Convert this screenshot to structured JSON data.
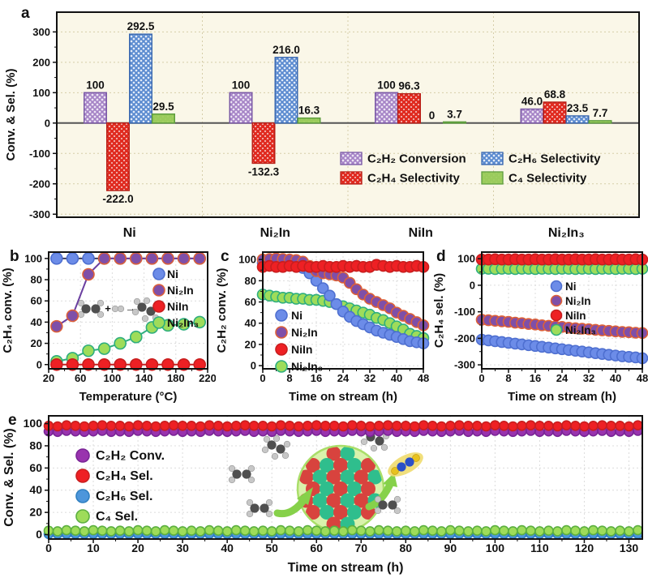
{
  "figure": {
    "panels": {
      "a": "a",
      "b": "b",
      "c": "c",
      "d": "d",
      "e": "e"
    },
    "inset_b": {
      "plus": "+",
      "arrow": "→"
    }
  },
  "chart_data": [
    {
      "panel": "a",
      "type": "bar",
      "ylabel": "Conv. & Sel. (%)",
      "categories": [
        "Ni",
        "Ni₂In",
        "NiIn",
        "Ni₂In₃"
      ],
      "ylim": [
        -310,
        365
      ],
      "yticks": [
        300,
        200,
        100,
        0,
        -100,
        -200,
        -300
      ],
      "series": [
        {
          "name": "C₂H₂ Conversion",
          "values": [
            100,
            100,
            100,
            46.0
          ],
          "labels": [
            "100",
            "100",
            "100",
            "46.0"
          ],
          "base": "#EFE7F5",
          "hatch": "#A583C6",
          "hw": 1.8,
          "edge": "#7B5AA6"
        },
        {
          "name": "C₂H₄ Selectivity",
          "values": [
            -222.0,
            -132.3,
            96.3,
            68.8
          ],
          "labels": [
            "-222.0",
            "-132.3",
            "96.3",
            "68.8"
          ],
          "base": "#FBEDEC",
          "hatch": "#E02B20",
          "hw": 2.6,
          "edge": "#B92018"
        },
        {
          "name": "C₂H₆ Selectivity",
          "values": [
            292.5,
            216.0,
            0,
            23.5
          ],
          "labels": [
            "292.5",
            "216.0",
            "0",
            "23.5"
          ],
          "base": "#EAF1FB",
          "hatch": "#5B8BD0",
          "hw": 1.9,
          "edge": "#3B69B0"
        },
        {
          "name": "C₄ Selectivity",
          "values": [
            29.5,
            16.3,
            3.7,
            7.7
          ],
          "labels": [
            "29.5",
            "16.3",
            "3.7",
            "7.7"
          ],
          "base": "#A8D66A",
          "hatch": "#9ACB5C",
          "hw": 3,
          "edge": "#5E9E3E"
        }
      ]
    },
    {
      "panel": "b",
      "type": "line",
      "xlabel": "Temperature (°C)",
      "ylabel": "C₂H₄ conv. (%)",
      "xlim": [
        20,
        220
      ],
      "ylim": [
        -4,
        106
      ],
      "xticks": [
        20,
        60,
        100,
        140,
        180,
        220
      ],
      "yticks": [
        0,
        20,
        40,
        60,
        80,
        100
      ],
      "x": [
        30,
        50,
        70,
        90,
        110,
        130,
        150,
        170,
        190,
        210
      ],
      "series": [
        {
          "name": "Ni",
          "fill": "#6C8CE8",
          "edge": "#4E6FD0",
          "line": "#3C3C5C",
          "values": [
            100,
            100,
            100,
            100,
            100,
            100,
            100,
            100,
            100,
            100
          ]
        },
        {
          "name": "Ni₂In",
          "fill": "#7F4FA8",
          "edge": "#DD6038",
          "line": "#6B3FA0",
          "values": [
            36,
            46,
            85,
            100,
            100,
            100,
            100,
            100,
            100,
            100
          ]
        },
        {
          "name": "NiIn",
          "fill": "#EE2024",
          "edge": "#C81E1E",
          "line": "#C81E1E",
          "values": [
            0,
            0,
            0,
            0,
            0,
            0,
            0,
            0,
            0,
            0
          ]
        },
        {
          "name": "Ni₂In₃",
          "fill": "#9EDC5A",
          "edge": "#2EAE7E",
          "line": "#2EAE7E",
          "values": [
            3,
            6,
            13,
            15,
            20,
            26,
            35,
            37,
            38,
            40
          ]
        }
      ],
      "draw_order": [
        0,
        1,
        3,
        2
      ]
    },
    {
      "panel": "c",
      "type": "scatter",
      "xlabel": "Time on stream (h)",
      "ylabel": "C₂H₂ conv. (%)",
      "xlim": [
        0,
        48
      ],
      "ylim": [
        -3,
        107
      ],
      "xticks": [
        0,
        8,
        16,
        24,
        32,
        40,
        48
      ],
      "yticks": [
        0,
        20,
        40,
        60,
        80,
        100
      ],
      "x_start": 0,
      "x_step": 2,
      "series": [
        {
          "name": "Ni",
          "fill": "#6C8CE8",
          "edge": "#4E6FD0",
          "values": [
            97,
            97,
            96,
            96,
            95,
            94,
            92,
            87,
            80,
            73,
            66,
            58,
            51,
            46,
            42,
            39,
            36,
            33,
            31,
            29,
            27,
            25,
            23,
            22,
            21
          ]
        },
        {
          "name": "Ni₂In",
          "fill": "#7F4FA8",
          "edge": "#DD6038",
          "values": [
            100,
            100.5,
            101,
            100.5,
            100,
            99.5,
            98,
            94,
            89,
            87,
            86,
            85,
            83,
            78,
            72,
            67,
            63,
            60,
            57,
            54,
            50,
            47,
            44,
            41,
            38
          ]
        },
        {
          "name": "NiIn",
          "fill": "#EE2024",
          "edge": "#C81E1E",
          "values": [
            93,
            94,
            93,
            93,
            94,
            93,
            94,
            93,
            93,
            94,
            93,
            93,
            94,
            93,
            94,
            93,
            93,
            95,
            94,
            93,
            94,
            93,
            93,
            94,
            93
          ]
        },
        {
          "name": "Ni₂In₃",
          "fill": "#9EDC5A",
          "edge": "#2EAE7E",
          "values": [
            67,
            66,
            65,
            64,
            64,
            63,
            63,
            62,
            62,
            61,
            60,
            58,
            56,
            54,
            52,
            50,
            48,
            45,
            43,
            40,
            37,
            34,
            30,
            28,
            26
          ]
        }
      ],
      "draw_order": [
        3,
        0,
        1,
        2
      ]
    },
    {
      "panel": "d",
      "type": "scatter",
      "xlabel": "Time on stream (h)",
      "ylabel": "C₂H₄ sel. (%)",
      "xlim": [
        0,
        48
      ],
      "ylim": [
        -315,
        125
      ],
      "xticks": [
        0,
        8,
        16,
        24,
        32,
        40,
        48
      ],
      "yticks": [
        100,
        0,
        -100,
        -200,
        -300
      ],
      "x_start": 0,
      "x_step": 2,
      "series": [
        {
          "name": "Ni",
          "fill": "#6C8CE8",
          "edge": "#4E6FD0",
          "values": [
            -205,
            -208,
            -211,
            -214,
            -217,
            -220,
            -223,
            -226,
            -229,
            -232,
            -235,
            -238,
            -241,
            -244,
            -247,
            -250,
            -253,
            -256,
            -259,
            -262,
            -265,
            -268,
            -270,
            -272,
            -275
          ]
        },
        {
          "name": "Ni₂In",
          "fill": "#7F4FA8",
          "edge": "#DD6038",
          "values": [
            -130,
            -132,
            -134,
            -136,
            -138,
            -141,
            -143,
            -146,
            -148,
            -151,
            -153,
            -155,
            -157,
            -160,
            -162,
            -164,
            -166,
            -168,
            -170,
            -172,
            -174,
            -176,
            -177,
            -179,
            -180
          ]
        },
        {
          "name": "NiIn",
          "fill": "#EE2024",
          "edge": "#C81E1E",
          "values": [
            97,
            97,
            98,
            97,
            97,
            98,
            97,
            97,
            98,
            97,
            97,
            98,
            97,
            97,
            98,
            97,
            97,
            98,
            97,
            97,
            98,
            97,
            97,
            98,
            97
          ]
        },
        {
          "name": "Ni₂In₃",
          "fill": "#9EDC5A",
          "edge": "#2EAE7E",
          "values": [
            62,
            62,
            61,
            62,
            62,
            61,
            62,
            62,
            61,
            62,
            62,
            61,
            62,
            62,
            61,
            62,
            62,
            61,
            62,
            62,
            61,
            62,
            62,
            61,
            62
          ]
        }
      ],
      "draw_order": [
        0,
        1,
        3,
        2
      ]
    },
    {
      "panel": "e",
      "type": "scatter",
      "xlabel": "Time on stream (h)",
      "ylabel": "Conv. & Sel. (%)",
      "xlim": [
        0,
        133
      ],
      "ylim": [
        -4,
        107
      ],
      "xticks": [
        0,
        10,
        20,
        30,
        40,
        50,
        60,
        70,
        80,
        90,
        100,
        110,
        120,
        130
      ],
      "yticks": [
        0,
        20,
        40,
        60,
        80,
        100
      ],
      "x_start": 0,
      "x_step": 2,
      "series": [
        {
          "name": "C₂H₂ Conv.",
          "fill": "#9933AE",
          "edge": "#7A2596",
          "values": [
            93,
            92.5,
            93.5,
            93,
            92.5,
            93,
            93.5,
            92.5,
            93,
            92.5,
            93.5,
            93,
            92.5,
            93,
            93.5,
            92.5,
            93,
            92.5,
            93.5,
            93,
            92.5,
            93,
            93.5,
            92.5,
            93,
            92.5,
            93.5,
            93,
            92.5,
            93,
            93.5,
            92.5,
            93,
            92.5,
            93.5,
            93,
            92.5,
            93,
            93.5,
            92.5,
            93,
            92.5,
            93.5,
            93,
            92.5,
            93,
            93.5,
            92.5,
            93,
            92.5,
            93.5,
            93,
            92.5,
            93,
            93.5,
            92.5,
            93,
            92.5,
            93.5,
            93,
            92.5,
            93,
            93.5,
            92.5,
            93,
            92.5,
            93.5
          ]
        },
        {
          "name": "C₂H₄ Sel.",
          "fill": "#EE2024",
          "edge": "#C81E1E",
          "values": [
            98,
            97.5,
            98.5,
            98,
            97.5,
            98,
            98.5,
            98,
            98,
            97.5,
            98.5,
            98,
            97.5,
            98,
            98.5,
            98,
            98,
            97.5,
            98.5,
            98,
            97.5,
            98,
            98.5,
            98,
            98,
            97.5,
            98.5,
            98,
            97.5,
            98,
            98.5,
            98,
            98,
            97.5,
            98.5,
            98,
            97.5,
            98,
            98.5,
            98,
            98,
            97.5,
            98.5,
            98,
            97.5,
            98,
            98.5,
            98,
            98,
            97.5,
            98.5,
            98,
            97.5,
            98,
            98.5,
            98,
            98,
            97.5,
            98.5,
            98,
            97.5,
            98,
            98.5,
            98,
            98,
            97.5,
            98.5
          ]
        },
        {
          "name": "C₂H₆ Sel.",
          "fill": "#4D96DB",
          "edge": "#2F7FC0",
          "values": [
            0.5,
            0.5,
            0.5,
            0.5,
            0.5,
            0.5,
            0.5,
            0.5,
            0.5,
            0.5,
            0.5,
            0.5,
            0.5,
            0.5,
            0.5,
            0.5,
            0.5,
            0.5,
            0.5,
            0.5,
            0.5,
            0.5,
            0.5,
            0.5,
            0.5,
            0.5,
            0.5,
            0.5,
            0.5,
            0.5,
            0.5,
            0.5,
            0.5,
            0.5,
            0.5,
            0.5,
            0.5,
            0.5,
            0.5,
            0.5,
            0.5,
            0.5,
            0.5,
            0.5,
            0.5,
            0.5,
            0.5,
            0.5,
            0.5,
            0.5,
            0.5,
            0.5,
            0.5,
            0.5,
            0.5,
            0.5,
            0.5,
            0.5,
            0.5,
            0.5,
            0.5,
            0.5,
            0.5,
            0.5,
            0.5,
            0.5,
            0.5
          ]
        },
        {
          "name": "C₄ Sel.",
          "fill": "#9EDC5A",
          "edge": "#5CB040",
          "values": [
            3.5,
            3,
            4,
            3.5,
            3,
            4,
            3.5,
            3,
            3.5,
            3,
            4,
            3.5,
            3,
            4,
            3.5,
            3,
            3.5,
            3,
            4,
            3.5,
            3,
            4,
            3.5,
            3,
            3.5,
            3,
            4,
            3.5,
            3,
            4,
            3.5,
            3,
            3.5,
            3,
            4,
            3.5,
            3,
            4,
            3.5,
            3,
            3.5,
            3,
            4,
            3.5,
            3,
            4,
            3.5,
            3,
            3.5,
            3,
            4,
            3.5,
            3,
            4,
            3.5,
            3,
            3.5,
            3,
            4,
            3.5,
            3,
            4,
            3.5,
            3,
            3.5,
            3,
            4
          ]
        }
      ],
      "draw_order": [
        2,
        3,
        0,
        1
      ]
    }
  ]
}
